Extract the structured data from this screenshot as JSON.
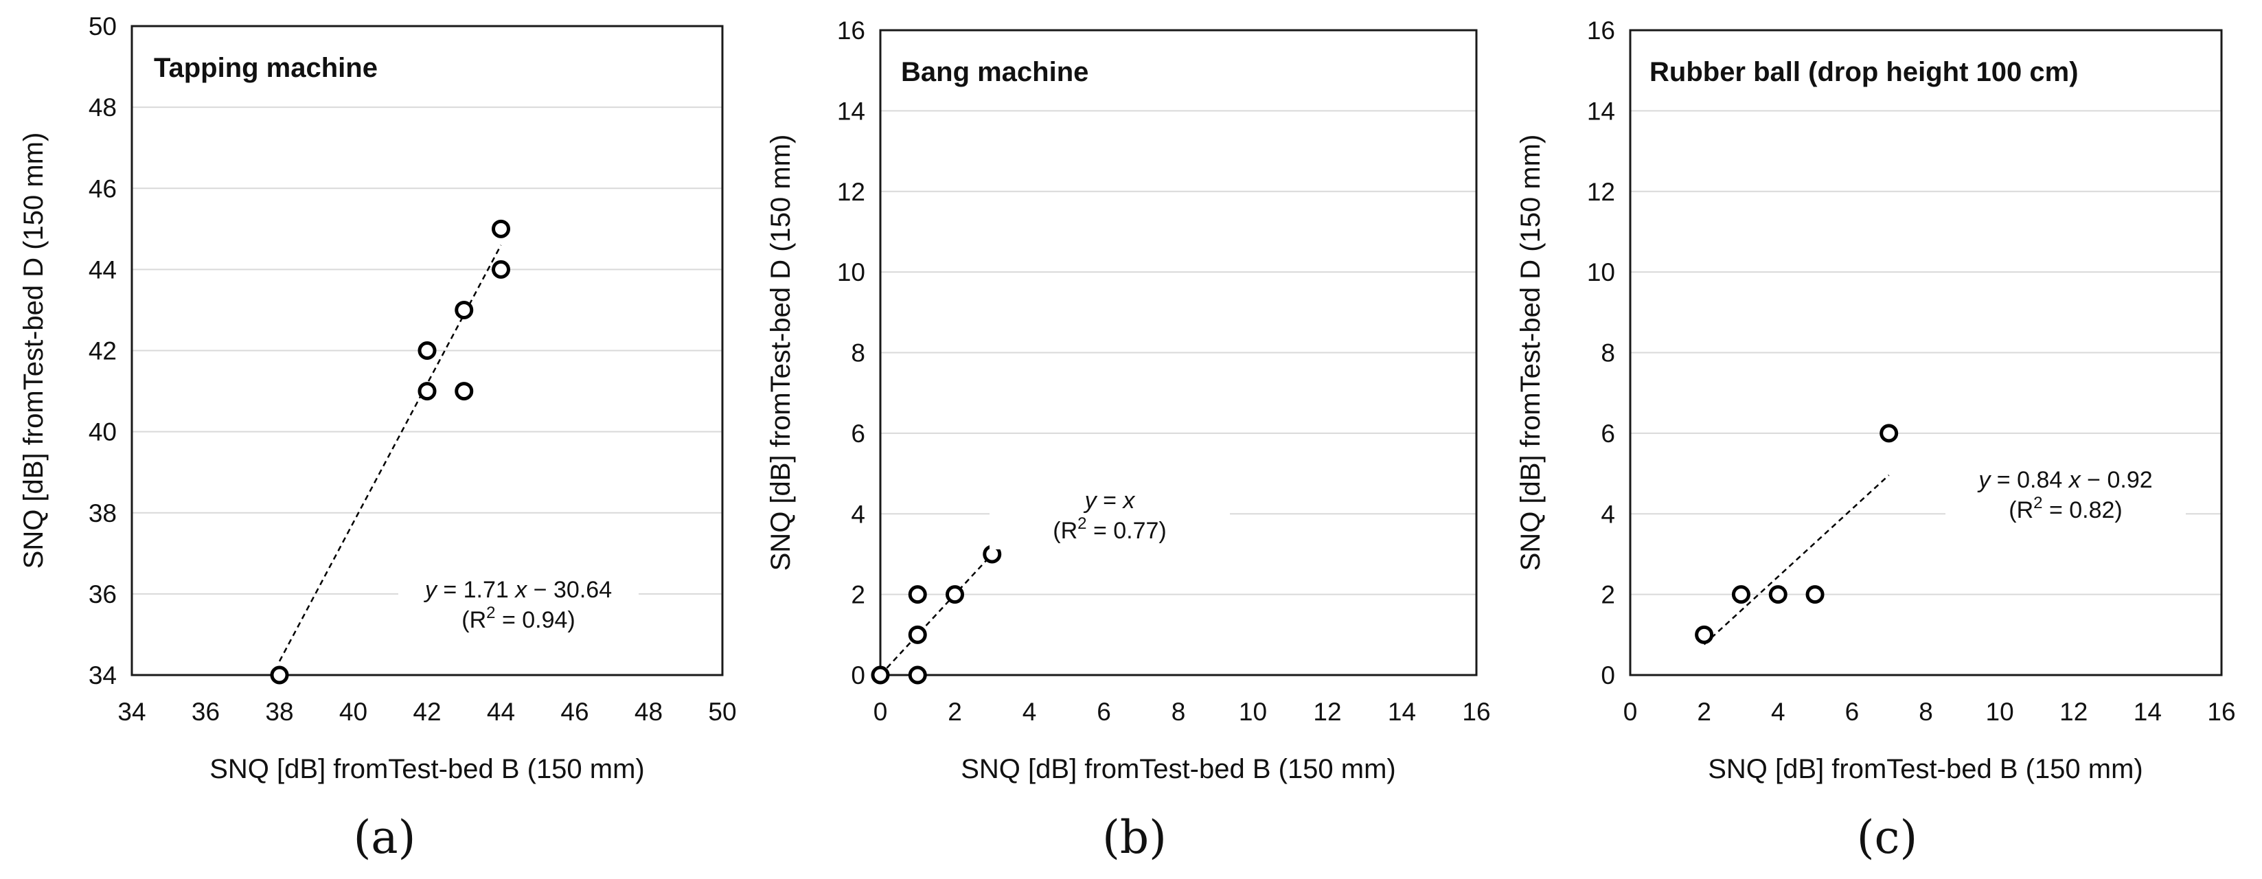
{
  "chart_data": [
    {
      "type": "scatter",
      "panel_label": "(a)",
      "title": "Tapping machine",
      "xlabel": "SNQ [dB] fromTest-bed B (150 mm)",
      "ylabel": "SNQ [dB] fromTest-bed D (150 mm)",
      "xlim": [
        34,
        50
      ],
      "ylim": [
        34,
        50
      ],
      "tick_step": 2,
      "grid": "horizontal",
      "points": [
        {
          "x": 38,
          "y": 34
        },
        {
          "x": 42,
          "y": 42
        },
        {
          "x": 42,
          "y": 41
        },
        {
          "x": 43,
          "y": 43
        },
        {
          "x": 43,
          "y": 41
        },
        {
          "x": 44,
          "y": 45
        },
        {
          "x": 44,
          "y": 44
        }
      ],
      "trendline": {
        "slope": 1.71,
        "intercept": -30.64,
        "x_from": 38,
        "x_to": 44,
        "style": "dashed"
      },
      "equation": {
        "line1": "y = 1.71 x − 30.64",
        "line2": "(R² = 0.94)",
        "lhs": "y",
        "mid": " = 1.71 ",
        "var": "x",
        "rhs": " − 30.64",
        "r_open": "(R",
        "r_sup": "2",
        "r_close": " = 0.94)"
      }
    },
    {
      "type": "scatter",
      "panel_label": "(b)",
      "title": "Bang machine",
      "xlabel": "SNQ [dB] fromTest-bed B (150 mm)",
      "ylabel": "SNQ [dB] fromTest-bed D (150 mm)",
      "xlim": [
        0,
        16
      ],
      "ylim": [
        0,
        16
      ],
      "tick_step": 2,
      "grid": "horizontal",
      "points": [
        {
          "x": 0,
          "y": 0
        },
        {
          "x": 1,
          "y": 2
        },
        {
          "x": 1,
          "y": 1
        },
        {
          "x": 1,
          "y": 0
        },
        {
          "x": 2,
          "y": 2
        },
        {
          "x": 3,
          "y": 3
        }
      ],
      "trendline": {
        "slope": 1,
        "intercept": 0,
        "x_from": 0,
        "x_to": 3,
        "style": "dashed"
      },
      "equation": {
        "line1": "y = x",
        "line2": "(R² = 0.77)",
        "lhs": "y",
        "mid": " = ",
        "var": "x",
        "rhs": "",
        "r_open": "(R",
        "r_sup": "2",
        "r_close": " = 0.77)"
      }
    },
    {
      "type": "scatter",
      "panel_label": "(c)",
      "title": "Rubber ball (drop height 100 cm)",
      "xlabel": "SNQ [dB] fromTest-bed B (150 mm)",
      "ylabel": "SNQ [dB] fromTest-bed D (150 mm)",
      "xlim": [
        0,
        16
      ],
      "ylim": [
        0,
        16
      ],
      "tick_step": 2,
      "grid": "horizontal",
      "points": [
        {
          "x": 2,
          "y": 1
        },
        {
          "x": 3,
          "y": 2
        },
        {
          "x": 4,
          "y": 2
        },
        {
          "x": 5,
          "y": 2
        },
        {
          "x": 7,
          "y": 6
        }
      ],
      "trendline": {
        "slope": 0.84,
        "intercept": -0.92,
        "x_from": 2,
        "x_to": 7,
        "style": "dashed"
      },
      "equation": {
        "line1": "y = 0.84 x − 0.92",
        "line2": "(R² = 0.82)",
        "lhs": "y",
        "mid": " = 0.84 ",
        "var": "x",
        "rhs": " − 0.92",
        "r_open": "(R",
        "r_sup": "2",
        "r_close": " = 0.82)"
      }
    }
  ]
}
